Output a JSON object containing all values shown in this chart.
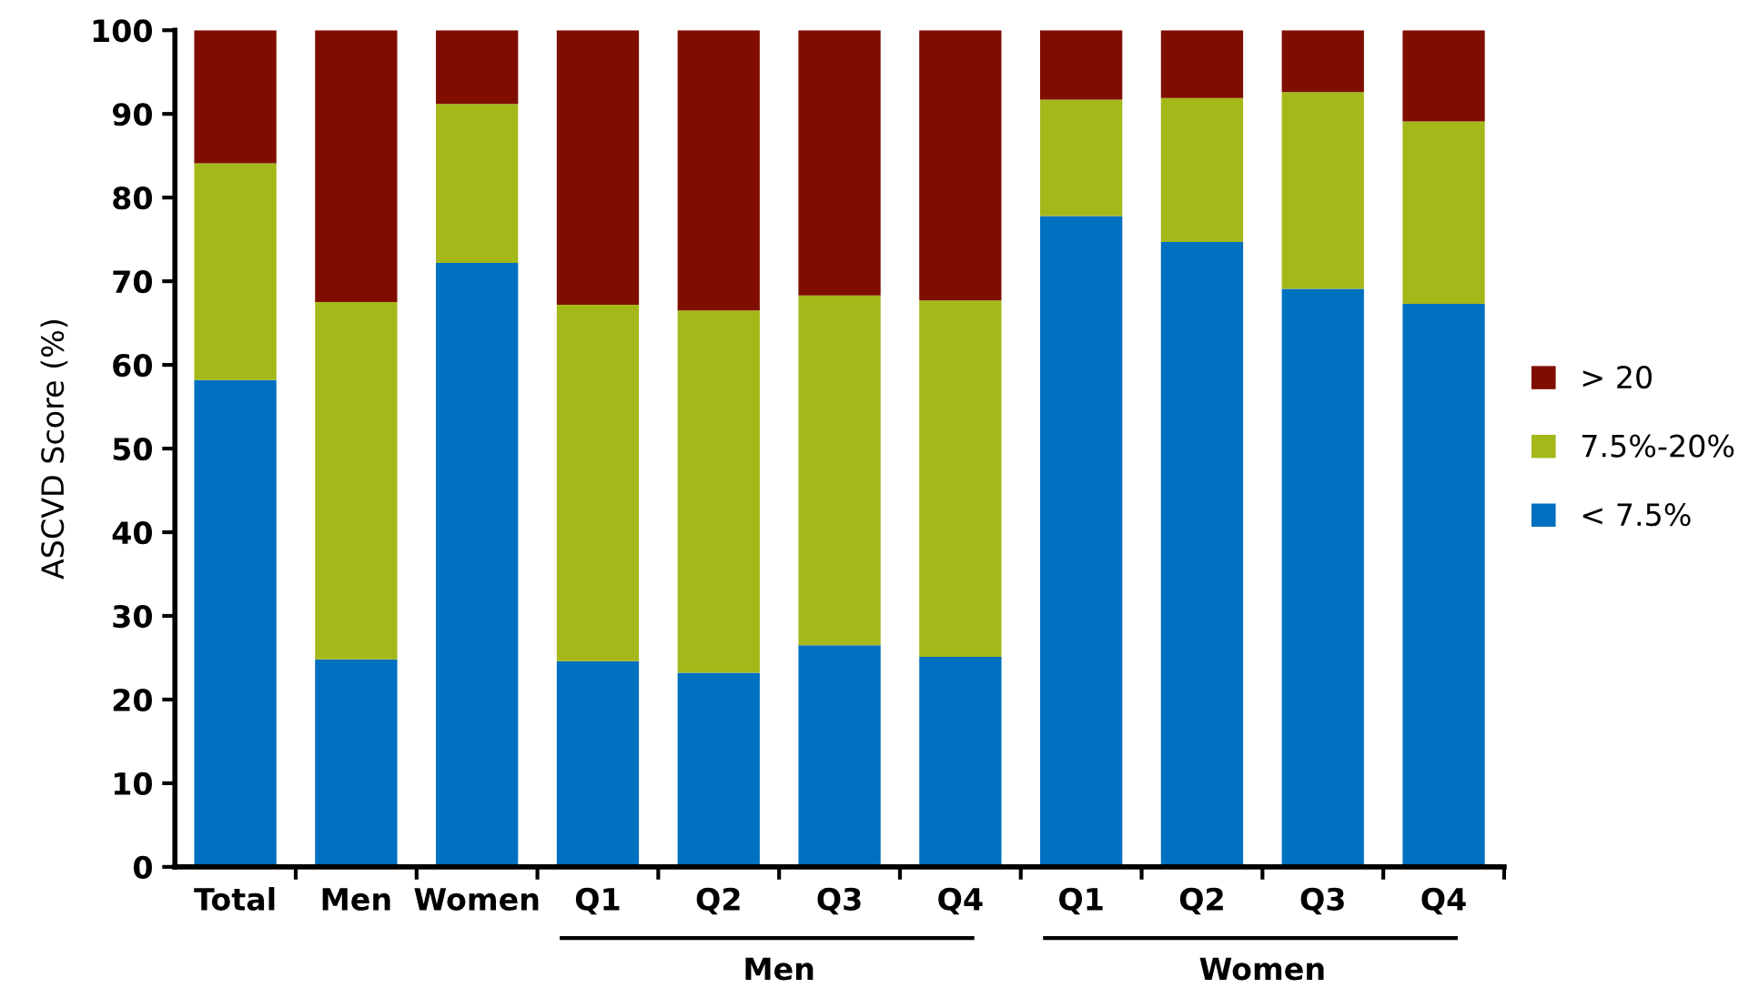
{
  "chart_data": {
    "type": "bar",
    "stacked": true,
    "ylabel": "ASCVD Score (%)",
    "categories": [
      "Total",
      "Men",
      "Women",
      "Q1",
      "Q2",
      "Q3",
      "Q4",
      "Q1",
      "Q2",
      "Q3",
      "Q4"
    ],
    "series": [
      {
        "name": "< 7.5%",
        "color": "#0070c0",
        "values": [
          58.2,
          24.8,
          72.2,
          24.6,
          23.2,
          26.5,
          25.1,
          77.8,
          74.7,
          69.1,
          67.3
        ]
      },
      {
        "name": "7.5%-20%",
        "color": "#a4b81a",
        "values": [
          25.9,
          42.7,
          19.0,
          42.6,
          43.3,
          41.8,
          42.6,
          13.9,
          17.2,
          23.5,
          21.8
        ]
      },
      {
        "name": "> 20",
        "color": "#7f0e00",
        "values": [
          15.9,
          32.5,
          8.8,
          32.8,
          33.5,
          31.7,
          32.3,
          8.3,
          8.1,
          7.4,
          10.9
        ]
      }
    ],
    "ylim": [
      0,
      100
    ],
    "yticks": [
      0,
      10,
      20,
      30,
      40,
      50,
      60,
      70,
      80,
      90,
      100
    ],
    "grid": false,
    "legend": "right",
    "annotations": [
      "Men",
      "Women"
    ]
  }
}
